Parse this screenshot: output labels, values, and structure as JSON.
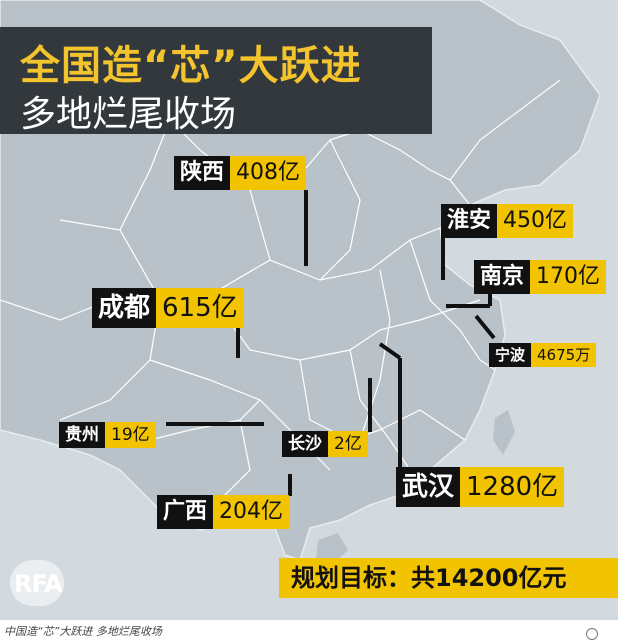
{
  "title": {
    "main": "全国造“芯”大跃进",
    "sub": "多地烂尾收场"
  },
  "labels": [
    {
      "city": "陕西",
      "amount": "408亿"
    },
    {
      "city": "淮安",
      "amount": "450亿"
    },
    {
      "city": "南京",
      "amount": "170亿"
    },
    {
      "city": "成都",
      "amount": "615亿"
    },
    {
      "city": "宁波",
      "amount": "4675万"
    },
    {
      "city": "贵州",
      "amount": "19亿"
    },
    {
      "city": "长沙",
      "amount": "2亿"
    },
    {
      "city": "武汉",
      "amount": "1280亿"
    },
    {
      "city": "广西",
      "amount": "204亿"
    }
  ],
  "target": "规划目标：共14200亿元",
  "logo": "RFA",
  "caption": "中国造“芯”大跃进 多地烂尾收场",
  "colors": {
    "land": "#b8c2c8",
    "sea": "#d3dadf",
    "border": "#ffffff",
    "accent": "#f2c300",
    "dark": "#111111",
    "titleBg": "#262c30"
  }
}
